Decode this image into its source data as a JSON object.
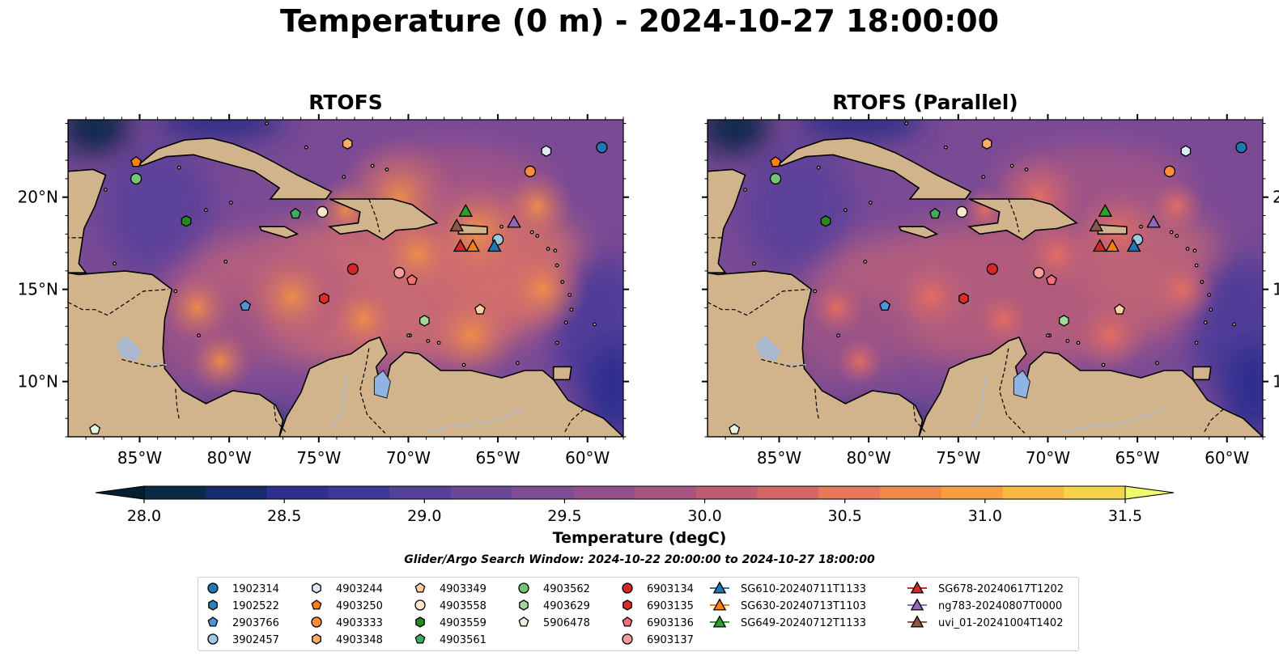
{
  "figure": {
    "title": "Temperature (0 m) - 2024-10-27 18:00:00",
    "colorbar_label": "Temperature (degC)",
    "search_window": "Glider/Argo Search Window: 2024-10-22 20:00:00 to 2024-10-27 18:00:00"
  },
  "panels": [
    {
      "title": "RTOFS"
    },
    {
      "title": "RTOFS (Parallel)"
    }
  ],
  "map": {
    "lon_ticks": [
      "85°W",
      "80°W",
      "75°W",
      "70°W",
      "65°W",
      "60°W"
    ],
    "lon_values": [
      -85,
      -80,
      -75,
      -70,
      -65,
      -60
    ],
    "lat_ticks": [
      "20°N",
      "15°N",
      "10°N"
    ],
    "lat_values": [
      20,
      15,
      10
    ],
    "extent": {
      "lon_min": -89,
      "lon_max": -58,
      "lat_min": 7,
      "lat_max": 24.2
    },
    "colors": {
      "land": "#d2b48c",
      "coast": "#000000",
      "rivers": "#aab8cf",
      "lake": "#8fb4e3"
    }
  },
  "colorbar": {
    "ticks": [
      "28.0",
      "28.5",
      "29.0",
      "29.5",
      "30.0",
      "30.5",
      "31.0",
      "31.5"
    ],
    "tick_values": [
      28.0,
      28.5,
      29.0,
      29.5,
      30.0,
      30.5,
      31.0,
      31.5
    ],
    "range": [
      28.0,
      31.5
    ],
    "level_colors": [
      "#0b2a45",
      "#152b6b",
      "#2e2f8f",
      "#3f3798",
      "#55409a",
      "#6a4797",
      "#7e4d93",
      "#934f8a",
      "#a65480",
      "#bd5c73",
      "#d46866",
      "#e6795a",
      "#f0884c",
      "#f79d42",
      "#f9b842",
      "#f5d34d"
    ],
    "under_color": "#06202f",
    "over_color": "#eef96b"
  },
  "legend": {
    "entries": [
      {
        "label": "1902314",
        "marker": "circle",
        "color": "#1f77b4",
        "lon": -59.2,
        "lat": 22.7
      },
      {
        "label": "1902522",
        "marker": "hexagon",
        "color": "#2c7fb8",
        "lon": null,
        "lat": null
      },
      {
        "label": "2903766",
        "marker": "pentagon",
        "color": "#4e94d6",
        "lon": -79.1,
        "lat": 14.1
      },
      {
        "label": "3902457",
        "marker": "circle",
        "color": "#9ecae1",
        "lon": -65,
        "lat": 17.7
      },
      {
        "label": "4903244",
        "marker": "hexagon",
        "color": "#deebf7",
        "lon": -62.3,
        "lat": 22.5
      },
      {
        "label": "4903250",
        "marker": "pentagon",
        "color": "#ff7f0e",
        "lon": -85.2,
        "lat": 21.9
      },
      {
        "label": "4903333",
        "marker": "circle",
        "color": "#fd8d3c",
        "lon": -63.2,
        "lat": 21.4
      },
      {
        "label": "4903348",
        "marker": "hexagon",
        "color": "#fdae6b",
        "lon": -73.4,
        "lat": 22.9
      },
      {
        "label": "4903349",
        "marker": "pentagon",
        "color": "#fdd0a2",
        "lon": -66,
        "lat": 13.9
      },
      {
        "label": "4903558",
        "marker": "circle",
        "color": "#fee6ce",
        "lon": -74.8,
        "lat": 19.2
      },
      {
        "label": "4903559",
        "marker": "hexagon",
        "color": "#238b22",
        "lon": -82.4,
        "lat": 18.7
      },
      {
        "label": "4903561",
        "marker": "pentagon",
        "color": "#41ab5d",
        "lon": -76.3,
        "lat": 19.1
      },
      {
        "label": "4903562",
        "marker": "circle",
        "color": "#74c476",
        "lon": -85.2,
        "lat": 21
      },
      {
        "label": "4903629",
        "marker": "hexagon",
        "color": "#a1d99b",
        "lon": -69.1,
        "lat": 13.3
      },
      {
        "label": "5906478",
        "marker": "pentagon",
        "color": "#e5f5e0",
        "lon": -87.5,
        "lat": 7.4
      },
      {
        "label": "6903134",
        "marker": "circle",
        "color": "#d62728",
        "lon": -73.1,
        "lat": 16.1
      },
      {
        "label": "6903135",
        "marker": "hexagon",
        "color": "#de2d26",
        "lon": -74.7,
        "lat": 14.5
      },
      {
        "label": "6903136",
        "marker": "pentagon",
        "color": "#f2707a",
        "lon": -69.8,
        "lat": 15.5
      },
      {
        "label": "6903137",
        "marker": "circle",
        "color": "#fc9c9c",
        "lon": -70.5,
        "lat": 15.9
      },
      {
        "label": "SG610-20240711T1133",
        "marker": "triangle",
        "color": "#1f77b4",
        "lon": -65.2,
        "lat": 17.3
      },
      {
        "label": "SG630-20240713T1103",
        "marker": "triangle",
        "color": "#ff7f0e",
        "lon": -66.4,
        "lat": 17.3
      },
      {
        "label": "SG649-20240712T1133",
        "marker": "triangle",
        "color": "#2ca02c",
        "lon": -66.8,
        "lat": 19.2
      },
      {
        "label": "SG678-20240617T1202",
        "marker": "triangle",
        "color": "#d62728",
        "lon": -67.1,
        "lat": 17.3
      },
      {
        "label": "ng783-20240807T0000",
        "marker": "triangle",
        "color": "#9467bd",
        "lon": -64.1,
        "lat": 18.6
      },
      {
        "label": "uvi_01-20241004T1402",
        "marker": "triangle",
        "color": "#8c564b",
        "lon": -67.3,
        "lat": 18.4
      }
    ]
  }
}
